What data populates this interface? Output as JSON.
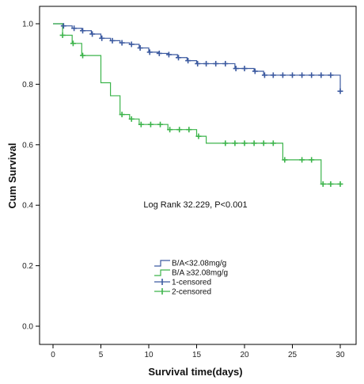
{
  "chart_data": {
    "type": "line",
    "xlabel": "Survival time(days)",
    "ylabel": "Cum Survival",
    "xlim": [
      0,
      31.5
    ],
    "ylim": [
      0,
      1.05
    ],
    "x_ticks": [
      "0",
      "5",
      "10",
      "15",
      "20",
      "25",
      "30"
    ],
    "y_ticks": [
      "0.0",
      "0.2",
      "0.4",
      "0.6",
      "0.8",
      "1.0"
    ],
    "grid": false,
    "annotation": "Log Rank 32.229, P<0.001",
    "legend": {
      "placement": "bottom-left",
      "entries": [
        {
          "label": "B/A<32.08mg/g",
          "kind": "line",
          "color": "#3c5aa0"
        },
        {
          "label": "B/A ≥32.08mg/g",
          "kind": "line",
          "color": "#3cb44b"
        },
        {
          "label": "1-censored",
          "kind": "censor",
          "color": "#3c5aa0"
        },
        {
          "label": "2-censored",
          "kind": "censor",
          "color": "#3cb44b"
        }
      ]
    },
    "series": [
      {
        "color": "#3c5aa0",
        "steps": [
          {
            "x": 0,
            "y": 1.0
          },
          {
            "x": 1,
            "y": 0.993
          },
          {
            "x": 2,
            "y": 0.985
          },
          {
            "x": 3,
            "y": 0.977
          },
          {
            "x": 4,
            "y": 0.966
          },
          {
            "x": 5,
            "y": 0.952
          },
          {
            "x": 6,
            "y": 0.944
          },
          {
            "x": 7,
            "y": 0.937
          },
          {
            "x": 8,
            "y": 0.932
          },
          {
            "x": 9,
            "y": 0.92
          },
          {
            "x": 10,
            "y": 0.906
          },
          {
            "x": 11,
            "y": 0.902
          },
          {
            "x": 12,
            "y": 0.898
          },
          {
            "x": 13,
            "y": 0.888
          },
          {
            "x": 14,
            "y": 0.878
          },
          {
            "x": 15,
            "y": 0.868
          },
          {
            "x": 19,
            "y": 0.852
          },
          {
            "x": 21,
            "y": 0.843
          },
          {
            "x": 22,
            "y": 0.83
          },
          {
            "x": 30,
            "y": 0.777
          }
        ],
        "censored": [
          {
            "x": 1.1,
            "y": 0.993
          },
          {
            "x": 2.2,
            "y": 0.985
          },
          {
            "x": 3.1,
            "y": 0.977
          },
          {
            "x": 4.1,
            "y": 0.966
          },
          {
            "x": 5.1,
            "y": 0.952
          },
          {
            "x": 6.2,
            "y": 0.944
          },
          {
            "x": 7.2,
            "y": 0.937
          },
          {
            "x": 8.2,
            "y": 0.932
          },
          {
            "x": 9.1,
            "y": 0.92
          },
          {
            "x": 10.1,
            "y": 0.906
          },
          {
            "x": 11.1,
            "y": 0.902
          },
          {
            "x": 12.1,
            "y": 0.898
          },
          {
            "x": 13.1,
            "y": 0.888
          },
          {
            "x": 14.1,
            "y": 0.878
          },
          {
            "x": 15.1,
            "y": 0.868
          },
          {
            "x": 16,
            "y": 0.868
          },
          {
            "x": 17,
            "y": 0.868
          },
          {
            "x": 18,
            "y": 0.868
          },
          {
            "x": 19.1,
            "y": 0.852
          },
          {
            "x": 20,
            "y": 0.852
          },
          {
            "x": 21.1,
            "y": 0.843
          },
          {
            "x": 22.1,
            "y": 0.83
          },
          {
            "x": 23,
            "y": 0.83
          },
          {
            "x": 24,
            "y": 0.83
          },
          {
            "x": 25,
            "y": 0.83
          },
          {
            "x": 26,
            "y": 0.83
          },
          {
            "x": 27,
            "y": 0.83
          },
          {
            "x": 28,
            "y": 0.83
          },
          {
            "x": 29,
            "y": 0.83
          },
          {
            "x": 30,
            "y": 0.777
          }
        ]
      },
      {
        "color": "#3cb44b",
        "steps": [
          {
            "x": 0,
            "y": 1.0
          },
          {
            "x": 1,
            "y": 0.962
          },
          {
            "x": 2,
            "y": 0.935
          },
          {
            "x": 3,
            "y": 0.895
          },
          {
            "x": 5,
            "y": 0.805
          },
          {
            "x": 6,
            "y": 0.762
          },
          {
            "x": 7,
            "y": 0.7
          },
          {
            "x": 8,
            "y": 0.685
          },
          {
            "x": 9,
            "y": 0.667
          },
          {
            "x": 12,
            "y": 0.65
          },
          {
            "x": 15,
            "y": 0.628
          },
          {
            "x": 16,
            "y": 0.605
          },
          {
            "x": 24,
            "y": 0.55
          },
          {
            "x": 28,
            "y": 0.47
          }
        ],
        "censored": [
          {
            "x": 1,
            "y": 0.962
          },
          {
            "x": 2.1,
            "y": 0.935
          },
          {
            "x": 3.1,
            "y": 0.895
          },
          {
            "x": 7.2,
            "y": 0.7
          },
          {
            "x": 8.2,
            "y": 0.685
          },
          {
            "x": 9.2,
            "y": 0.667
          },
          {
            "x": 10.2,
            "y": 0.667
          },
          {
            "x": 11.2,
            "y": 0.667
          },
          {
            "x": 12.2,
            "y": 0.65
          },
          {
            "x": 13.2,
            "y": 0.65
          },
          {
            "x": 14.2,
            "y": 0.65
          },
          {
            "x": 15.2,
            "y": 0.628
          },
          {
            "x": 18,
            "y": 0.605
          },
          {
            "x": 19,
            "y": 0.605
          },
          {
            "x": 20,
            "y": 0.605
          },
          {
            "x": 21,
            "y": 0.605
          },
          {
            "x": 22,
            "y": 0.605
          },
          {
            "x": 23,
            "y": 0.605
          },
          {
            "x": 24.2,
            "y": 0.55
          },
          {
            "x": 26,
            "y": 0.55
          },
          {
            "x": 27,
            "y": 0.55
          },
          {
            "x": 28.2,
            "y": 0.47
          },
          {
            "x": 29,
            "y": 0.47
          },
          {
            "x": 30,
            "y": 0.47
          }
        ]
      }
    ]
  }
}
